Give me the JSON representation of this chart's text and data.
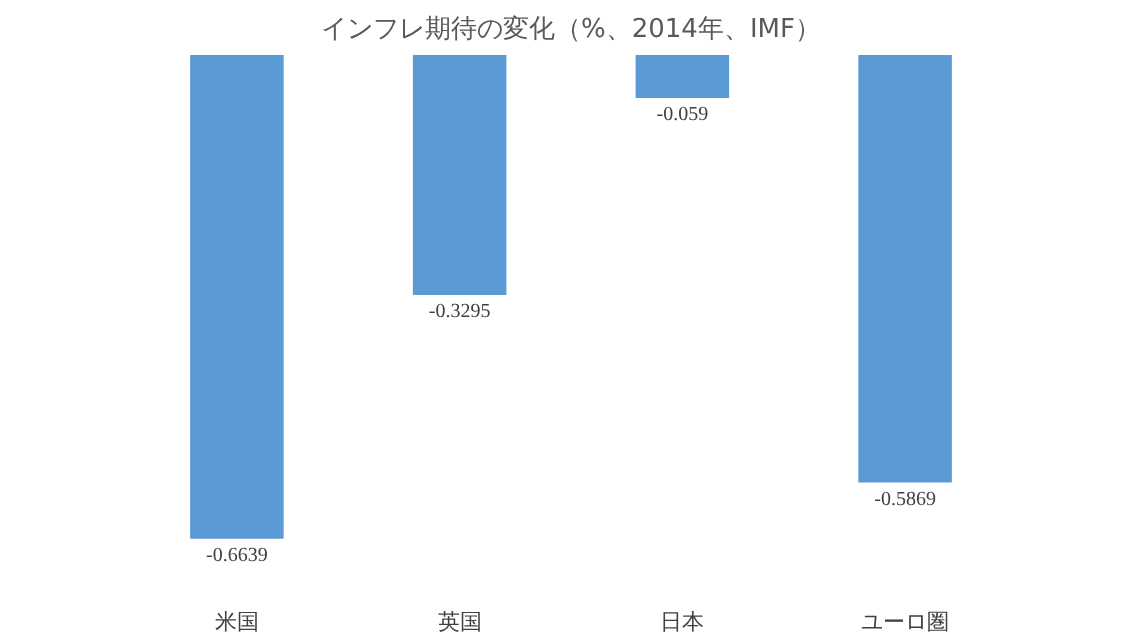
{
  "chart_data": {
    "type": "bar",
    "title": "インフレ期待の変化（%、2014年、IMF）",
    "categories": [
      "米国",
      "英国",
      "日本",
      "ユーロ圏"
    ],
    "values": [
      -0.6639,
      -0.3295,
      -0.059,
      -0.5869
    ],
    "color": "#5b9bd5",
    "data_labels": true
  }
}
